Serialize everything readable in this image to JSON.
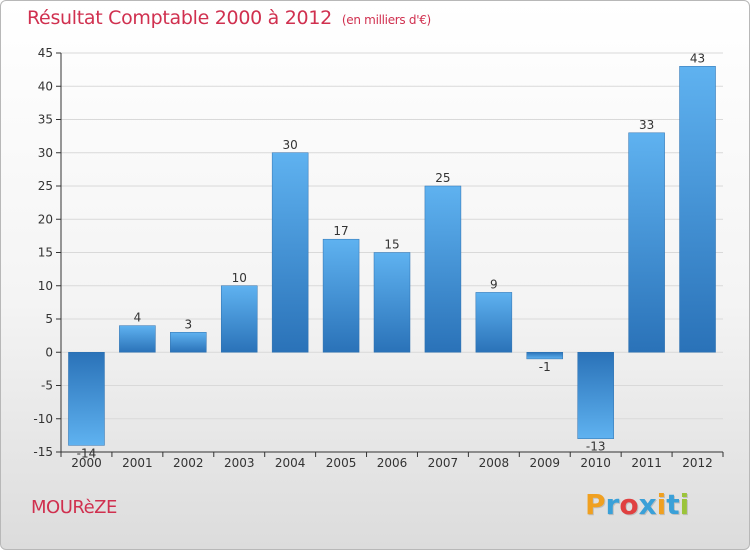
{
  "chart_data": {
    "type": "bar",
    "title": "Résultat Comptable 2000 à 2012",
    "subtitle": "(en milliers d'€)",
    "categories": [
      "2000",
      "2001",
      "2002",
      "2003",
      "2004",
      "2005",
      "2006",
      "2007",
      "2008",
      "2009",
      "2010",
      "2011",
      "2012"
    ],
    "values": [
      -14,
      4,
      3,
      10,
      30,
      17,
      15,
      25,
      9,
      -1,
      -13,
      33,
      43
    ],
    "value_labels": [
      "-14",
      "4",
      "3",
      "10",
      "30",
      "17",
      "15",
      "25",
      "9",
      "-1",
      "-13",
      "33",
      "43"
    ],
    "ylim": [
      -15,
      45
    ],
    "yticks": [
      -15,
      -10,
      -5,
      0,
      5,
      10,
      15,
      20,
      25,
      30,
      35,
      40,
      45
    ],
    "grid": true,
    "xlabel": "",
    "ylabel": "",
    "bar_color": "#3b8fd6",
    "bar_color_light": "#5fb2f0",
    "bar_color_dark": "#2a72b8"
  },
  "footer": {
    "town": "MOURèZE",
    "logo_letters": [
      "P",
      "r",
      "o",
      "x",
      "i",
      "t",
      "i"
    ],
    "logo_colors": [
      "#f0a020",
      "#3aa0d8",
      "#e04040",
      "#3aa0d8",
      "#f0a020",
      "#3aa0d8",
      "#9bc43a"
    ]
  }
}
